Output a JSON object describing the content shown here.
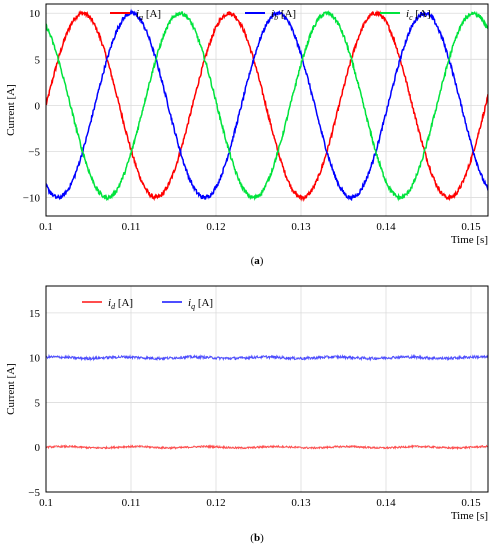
{
  "chart_data": [
    {
      "type": "line",
      "panel_label": "(a)",
      "xlabel": "Time [s]",
      "ylabel": "Current [A]",
      "xlim": [
        0.1,
        0.152
      ],
      "ylim": [
        -12,
        11
      ],
      "xticks": [
        0.1,
        0.11,
        0.12,
        0.13,
        0.14,
        0.15
      ],
      "xtick_labels": [
        "0.1",
        "0.11",
        "0.12",
        "0.13",
        "0.14",
        "0.15"
      ],
      "yticks": [
        -10,
        -5,
        0,
        5,
        10
      ],
      "ytick_labels": [
        "−10",
        "−5",
        "0",
        "5",
        "10"
      ],
      "grid": true,
      "legend_position": "top-center",
      "frequency_hz": 58,
      "series": [
        {
          "name_base": "i",
          "name_sub": "a",
          "name_unit": " [A]",
          "color": "#ff0000",
          "amplitude": 10,
          "phase_deg": 0
        },
        {
          "name_base": "i",
          "name_sub": "b",
          "name_unit": " [A]",
          "color": "#0000ff",
          "amplitude": 10,
          "phase_deg": -120
        },
        {
          "name_base": "i",
          "name_sub": "c",
          "name_unit": " [A]",
          "color": "#00e33c",
          "amplitude": 10,
          "phase_deg": 120
        }
      ]
    },
    {
      "type": "line",
      "panel_label": "(b)",
      "xlabel": "Time [s]",
      "ylabel": "Current [A]",
      "xlim": [
        0.1,
        0.152
      ],
      "ylim": [
        -5,
        18
      ],
      "xticks": [
        0.1,
        0.11,
        0.12,
        0.13,
        0.14,
        0.15
      ],
      "xtick_labels": [
        "0.1",
        "0.11",
        "0.12",
        "0.13",
        "0.14",
        "0.15"
      ],
      "yticks": [
        -5,
        0,
        5,
        10,
        15
      ],
      "ytick_labels": [
        "−5",
        "0",
        "5",
        "10",
        "15"
      ],
      "grid": true,
      "legend_position": "top-left",
      "series": [
        {
          "name_base": "i",
          "name_sub": "d",
          "name_unit": " [A]",
          "color": "#ff4d4d",
          "value": 0,
          "ripple": 0.1
        },
        {
          "name_base": "i",
          "name_sub": "q",
          "name_unit": " [A]",
          "color": "#4d4dff",
          "value": 10,
          "ripple": 0.15
        }
      ]
    }
  ]
}
